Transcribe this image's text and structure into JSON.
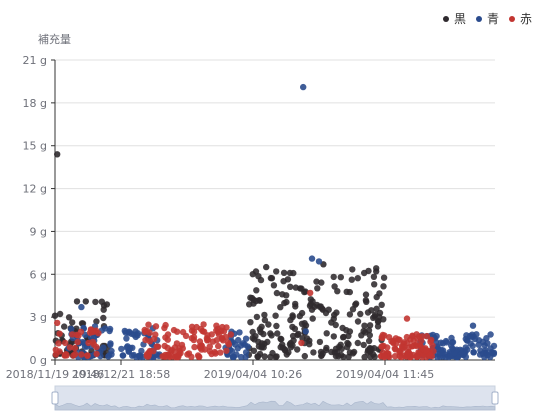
{
  "chart_data": {
    "type": "scatter",
    "y_axis": {
      "name": "補充量",
      "unit": "g",
      "ticks": [
        0,
        3,
        6,
        9,
        12,
        15,
        18,
        21
      ],
      "tick_labels": [
        "0 g",
        "3 g",
        "6 g",
        "9 g",
        "12 g",
        "15 g",
        "18 g",
        "21 g"
      ],
      "range": [
        0,
        21
      ]
    },
    "x_axis": {
      "type": "category",
      "tick_labels": [
        "2018/11/19 19:46",
        "2018/12/21 18:58",
        "2019/04/04 10:26",
        "2019/04/04 11:45"
      ],
      "tick_positions": [
        0,
        0.15,
        0.45,
        0.75
      ],
      "range": [
        0,
        1
      ]
    },
    "grid": true,
    "legend": {
      "placement": "top-right"
    },
    "series": [
      {
        "name": "黒",
        "color": "#2f2a2e",
        "clusters": [
          {
            "x": [
              0.0,
              0.12
            ],
            "y": [
              0.3,
              4.2
            ],
            "n": 60
          },
          {
            "x": [
              0.44,
              0.75
            ],
            "y": [
              0.2,
              6.5
            ],
            "n": 230
          }
        ],
        "points": [
          {
            "x": 0.005,
            "y": 14.4
          },
          {
            "x": 0.48,
            "y": 6.5
          },
          {
            "x": 0.61,
            "y": 6.7
          },
          {
            "x": 0.73,
            "y": 6.2
          },
          {
            "x": 0.56,
            "y": 5.0
          },
          {
            "x": 0.05,
            "y": 4.1
          },
          {
            "x": 0.07,
            "y": 4.1
          },
          {
            "x": 0.0,
            "y": 3.1
          }
        ]
      },
      {
        "name": "青",
        "color": "#2a4b8d",
        "clusters": [
          {
            "x": [
              0.03,
              0.13
            ],
            "y": [
              0.2,
              2.5
            ],
            "n": 45
          },
          {
            "x": [
              0.15,
              0.24
            ],
            "y": [
              0.2,
              2.4
            ],
            "n": 50
          },
          {
            "x": [
              0.38,
              0.44
            ],
            "y": [
              0.2,
              2.0
            ],
            "n": 30
          },
          {
            "x": [
              0.83,
              1.0
            ],
            "y": [
              0.2,
              1.8
            ],
            "n": 110
          }
        ],
        "points": [
          {
            "x": 0.564,
            "y": 19.1
          },
          {
            "x": 0.584,
            "y": 7.1
          },
          {
            "x": 0.6,
            "y": 6.9
          },
          {
            "x": 0.06,
            "y": 3.7
          },
          {
            "x": 0.95,
            "y": 2.4
          },
          {
            "x": 0.57,
            "y": 2.0
          }
        ]
      },
      {
        "name": "赤",
        "color": "#c23531",
        "clusters": [
          {
            "x": [
              0.0,
              0.1
            ],
            "y": [
              0.3,
              2.2
            ],
            "n": 35
          },
          {
            "x": [
              0.2,
              0.4
            ],
            "y": [
              0.2,
              2.5
            ],
            "n": 110
          },
          {
            "x": [
              0.74,
              0.86
            ],
            "y": [
              0.2,
              1.8
            ],
            "n": 100
          }
        ],
        "points": [
          {
            "x": 0.58,
            "y": 4.7
          },
          {
            "x": 0.56,
            "y": 1.2
          },
          {
            "x": 0.8,
            "y": 2.9
          },
          {
            "x": 0.005,
            "y": 2.6
          }
        ]
      }
    ]
  }
}
